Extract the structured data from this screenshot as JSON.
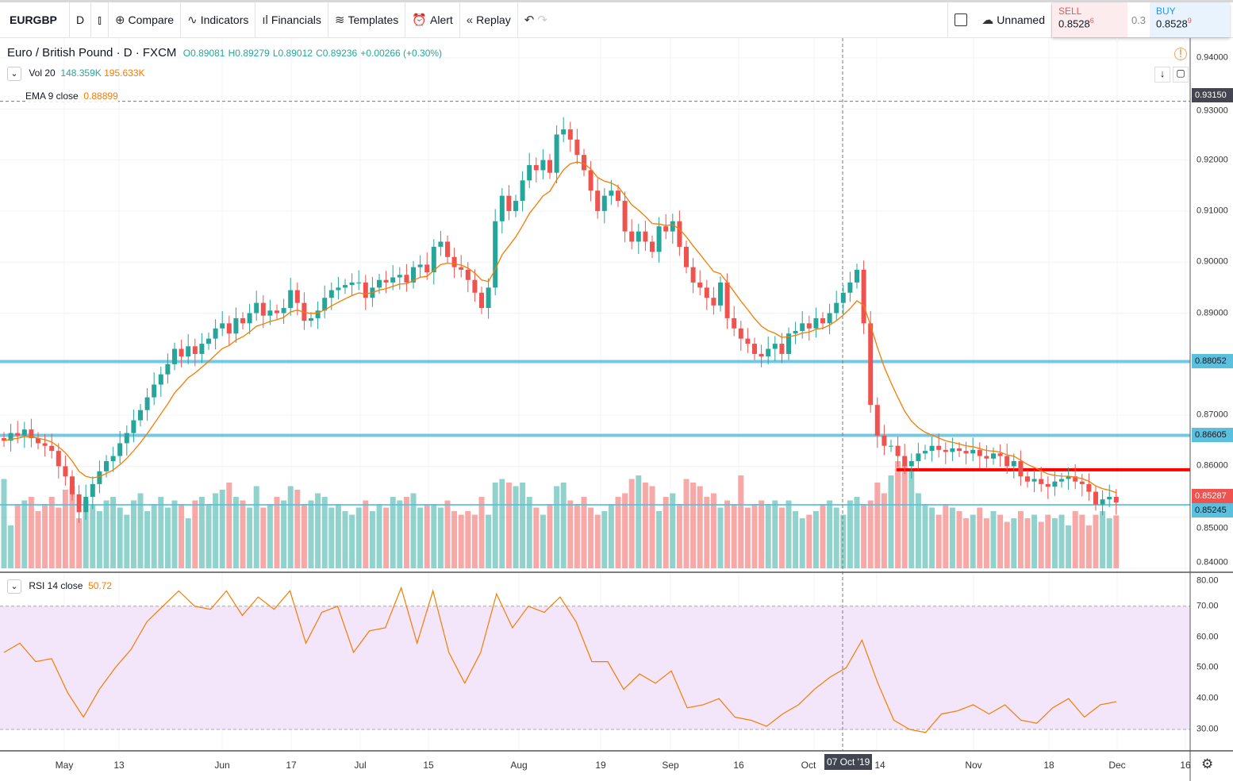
{
  "toolbar": {
    "symbol": "EURGBP",
    "interval": "D",
    "chart_type_icon": "candles-icon",
    "compare": "Compare",
    "indicators": "Indicators",
    "financials": "Financials",
    "templates": "Templates",
    "alert": "Alert",
    "replay": "Replay",
    "layout_name": "Unnamed"
  },
  "trade": {
    "sell_label": "SELL",
    "sell_price": "0.8528",
    "sell_sup": "6",
    "spread": "0.3",
    "buy_label": "BUY",
    "buy_price": "0.8528",
    "buy_sup": "9"
  },
  "legend": {
    "title": "Euro / British Pound · D · FXCM",
    "open": "O0.89081",
    "high": "H0.89279",
    "low": "L0.89012",
    "close": "C0.89236",
    "change": "+0.00266 (+0.30%)",
    "vol_name": "Vol 20",
    "vol_value": "148.359K",
    "vol_ma": "195.633K",
    "ema_name": "EMA 9 close",
    "ema_value": "0.88899",
    "rsi_name": "RSI 14 close",
    "rsi_value": "50.72"
  },
  "colors": {
    "up": "#26a69a",
    "down": "#ef5350",
    "ema": "#f57c00",
    "hline": "#5bc0de",
    "red_line": "#ff0000",
    "rsi": "#f57c00",
    "rsi_band": "#f3e6fb"
  },
  "price_axis": {
    "ticks": [
      "0.94000",
      "0.93000",
      "0.92000",
      "0.91000",
      "0.90000",
      "0.89000",
      "0.88000",
      "0.87000",
      "0.86000",
      "0.85000",
      "0.84000"
    ],
    "labels": [
      {
        "text": "0.93150",
        "bg": "#434651"
      },
      {
        "text": "0.88052",
        "bg": "#5bc0de"
      },
      {
        "text": "0.86605",
        "bg": "#5bc0de"
      },
      {
        "text": "0.85287",
        "bg": "#ef5350"
      },
      {
        "text": "0.85245",
        "bg": "#5bc0de"
      }
    ]
  },
  "rsi_axis": {
    "ticks": [
      "80.00",
      "70.00",
      "60.00",
      "50.00",
      "40.00",
      "30.00"
    ]
  },
  "time_axis": {
    "labels": [
      "May",
      "13",
      "Jun",
      "17",
      "Jul",
      "15",
      "Aug",
      "19",
      "Sep",
      "16",
      "Oct",
      "14",
      "Nov",
      "18",
      "Dec",
      "16"
    ],
    "crosshair": "07 Oct '19"
  },
  "chart_data": {
    "type": "candlestick",
    "ylim": [
      0.84,
      0.94
    ],
    "hlines": [
      0.88052,
      0.86605,
      0.85245
    ],
    "red_line": 0.8593,
    "dashed_line": 0.9315,
    "closes": [
      0.865,
      0.8665,
      0.866,
      0.8672,
      0.8655,
      0.8645,
      0.864,
      0.863,
      0.86,
      0.858,
      0.8545,
      0.851,
      0.854,
      0.8565,
      0.859,
      0.861,
      0.862,
      0.8645,
      0.8665,
      0.869,
      0.871,
      0.8735,
      0.876,
      0.878,
      0.88,
      0.883,
      0.8815,
      0.8835,
      0.882,
      0.884,
      0.885,
      0.887,
      0.888,
      0.886,
      0.889,
      0.888,
      0.89,
      0.892,
      0.8895,
      0.8905,
      0.89,
      0.891,
      0.8945,
      0.892,
      0.8885,
      0.889,
      0.8905,
      0.893,
      0.8945,
      0.895,
      0.8955,
      0.896,
      0.896,
      0.893,
      0.895,
      0.8965,
      0.896,
      0.897,
      0.8975,
      0.896,
      0.899,
      0.8995,
      0.898,
      0.903,
      0.904,
      0.901,
      0.899,
      0.8985,
      0.8965,
      0.894,
      0.891,
      0.895,
      0.908,
      0.913,
      0.91,
      0.912,
      0.916,
      0.919,
      0.918,
      0.92,
      0.9175,
      0.925,
      0.926,
      0.924,
      0.921,
      0.918,
      0.914,
      0.91,
      0.913,
      0.914,
      0.912,
      0.906,
      0.904,
      0.906,
      0.904,
      0.902,
      0.907,
      0.906,
      0.908,
      0.903,
      0.899,
      0.896,
      0.895,
      0.893,
      0.8915,
      0.896,
      0.889,
      0.887,
      0.885,
      0.884,
      0.882,
      0.8815,
      0.883,
      0.884,
      0.882,
      0.886,
      0.8865,
      0.888,
      0.887,
      0.889,
      0.888,
      0.89,
      0.892,
      0.894,
      0.896,
      0.8985,
      0.888,
      0.872,
      0.866,
      0.864,
      0.864,
      0.862,
      0.86,
      0.861,
      0.8625,
      0.863,
      0.864,
      0.8632,
      0.8628,
      0.8635,
      0.863,
      0.8625,
      0.8632,
      0.862,
      0.8615,
      0.8625,
      0.862,
      0.86,
      0.861,
      0.858,
      0.857,
      0.8575,
      0.8565,
      0.856,
      0.857,
      0.8575,
      0.858,
      0.857,
      0.8565,
      0.855,
      0.8525,
      0.8535,
      0.854,
      0.8529
    ],
    "volumes_k": [
      250,
      120,
      180,
      190,
      200,
      160,
      180,
      200,
      170,
      220,
      230,
      140,
      190,
      180,
      160,
      190,
      200,
      170,
      150,
      190,
      210,
      160,
      180,
      200,
      170,
      190,
      180,
      140,
      190,
      200,
      180,
      210,
      220,
      240,
      200,
      190,
      170,
      230,
      170,
      180,
      200,
      190,
      230,
      220,
      180,
      190,
      210,
      200,
      170,
      180,
      160,
      150,
      170,
      190,
      160,
      180,
      170,
      200,
      190,
      200,
      210,
      170,
      180,
      180,
      170,
      190,
      160,
      150,
      160,
      150,
      200,
      150,
      240,
      250,
      240,
      230,
      240,
      200,
      170,
      150,
      180,
      230,
      240,
      190,
      180,
      200,
      170,
      150,
      160,
      180,
      200,
      210,
      250,
      260,
      240,
      230,
      160,
      200,
      210,
      180,
      250,
      240,
      230,
      200,
      210,
      170,
      190,
      180,
      260,
      170,
      180,
      190,
      180,
      190,
      170,
      190,
      160,
      140,
      150,
      160,
      180,
      190,
      170,
      150,
      190,
      200,
      180,
      190,
      240,
      210,
      260,
      300,
      290,
      280,
      210,
      180,
      170,
      150,
      180,
      170,
      160,
      140,
      150,
      170,
      140,
      160,
      150,
      130,
      140,
      160,
      140,
      150,
      130,
      150,
      140,
      150,
      120,
      160,
      150,
      120,
      150,
      160,
      140,
      148
    ],
    "rsi": [
      55,
      58,
      52,
      53,
      42,
      34,
      43,
      50,
      56,
      65,
      70,
      75,
      70,
      69,
      75,
      67,
      73,
      69,
      75,
      58,
      68,
      70,
      55,
      62,
      63,
      76,
      58,
      75,
      55,
      45,
      55,
      74,
      63,
      70,
      68,
      73,
      65,
      52,
      52,
      43,
      48,
      45,
      49,
      37,
      38,
      40,
      34,
      33,
      31,
      35,
      38,
      43,
      47,
      50,
      59,
      45,
      33,
      30,
      29,
      35,
      36,
      38,
      35,
      38,
      33,
      32,
      37,
      40,
      34,
      38,
      39
    ],
    "rsi_ylim": [
      25,
      80
    ]
  }
}
